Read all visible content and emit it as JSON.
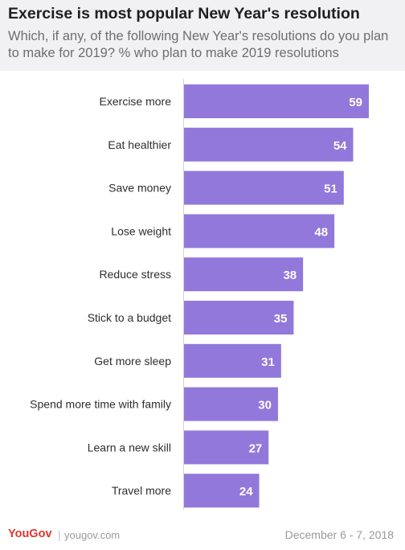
{
  "header": {
    "title": "Exercise is most popular New Year's resolution",
    "subtitle": "Which, if any, of the following New Year's resolutions do you plan to make for 2019? % who plan to make 2019 resolutions"
  },
  "chart_data": {
    "type": "bar",
    "orientation": "horizontal",
    "title": "Exercise is most popular New Year's resolution",
    "subtitle": "Which, if any, of the following New Year's resolutions do you plan to make for 2019? % who plan to make 2019 resolutions",
    "categories": [
      "Exercise more",
      "Eat healthier",
      "Save money",
      "Lose weight",
      "Reduce stress",
      "Stick to a budget",
      "Get more sleep",
      "Spend more time with family",
      "Learn a new skill",
      "Travel more"
    ],
    "values": [
      59,
      54,
      51,
      48,
      38,
      35,
      31,
      30,
      27,
      24
    ],
    "xlim": [
      0,
      59
    ],
    "grid": false,
    "data_labels": true,
    "bar_color": "#9378db",
    "label_color": "#ffffff"
  },
  "footer": {
    "brand": "YouGov",
    "separator": "|",
    "site": "yougov.com",
    "date": "December 6 - 7, 2018"
  },
  "colors": {
    "header_bg": "#f1f1f4",
    "brand": "#e0352d",
    "axis": "#d2d2d2"
  }
}
